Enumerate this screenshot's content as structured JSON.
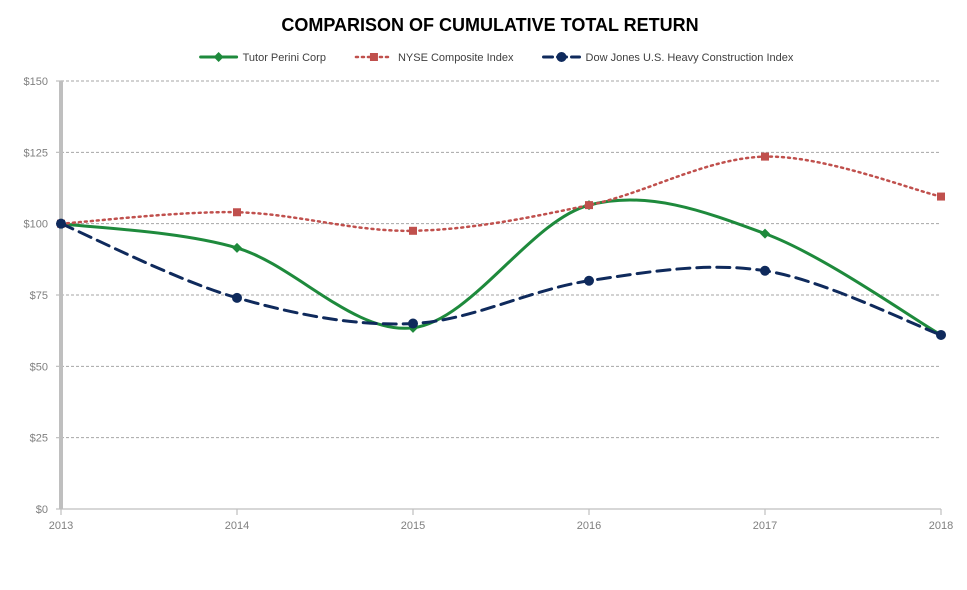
{
  "chart_data": {
    "type": "line",
    "title": "COMPARISON OF CUMULATIVE TOTAL RETURN",
    "xlabel": "",
    "ylabel": "",
    "x": [
      "2013",
      "2014",
      "2015",
      "2016",
      "2017",
      "2018"
    ],
    "ylim": [
      0,
      150
    ],
    "ytick_values": [
      0,
      25,
      50,
      75,
      100,
      125,
      150
    ],
    "ytick_labels": [
      "$0",
      "$25",
      "$50",
      "$75",
      "$100",
      "$125",
      "$150"
    ],
    "grid": "horizontal dashed",
    "legend_position": "top-center",
    "series": [
      {
        "name": "Tutor Perini Corp",
        "values": [
          100,
          91.5,
          63.5,
          106.5,
          96.5,
          61
        ],
        "color": "#1e8a3c",
        "line_style": "solid",
        "marker": "diamond"
      },
      {
        "name": "NYSE Composite Index",
        "values": [
          100,
          104,
          97.5,
          106.5,
          123.5,
          109.5
        ],
        "color": "#c0504d",
        "line_style": "dotted",
        "marker": "square"
      },
      {
        "name": "Dow Jones U.S. Heavy Construction Index",
        "values": [
          100,
          74,
          65,
          80,
          83.5,
          61
        ],
        "color": "#0f2a5c",
        "line_style": "dashed",
        "marker": "circle"
      }
    ]
  }
}
